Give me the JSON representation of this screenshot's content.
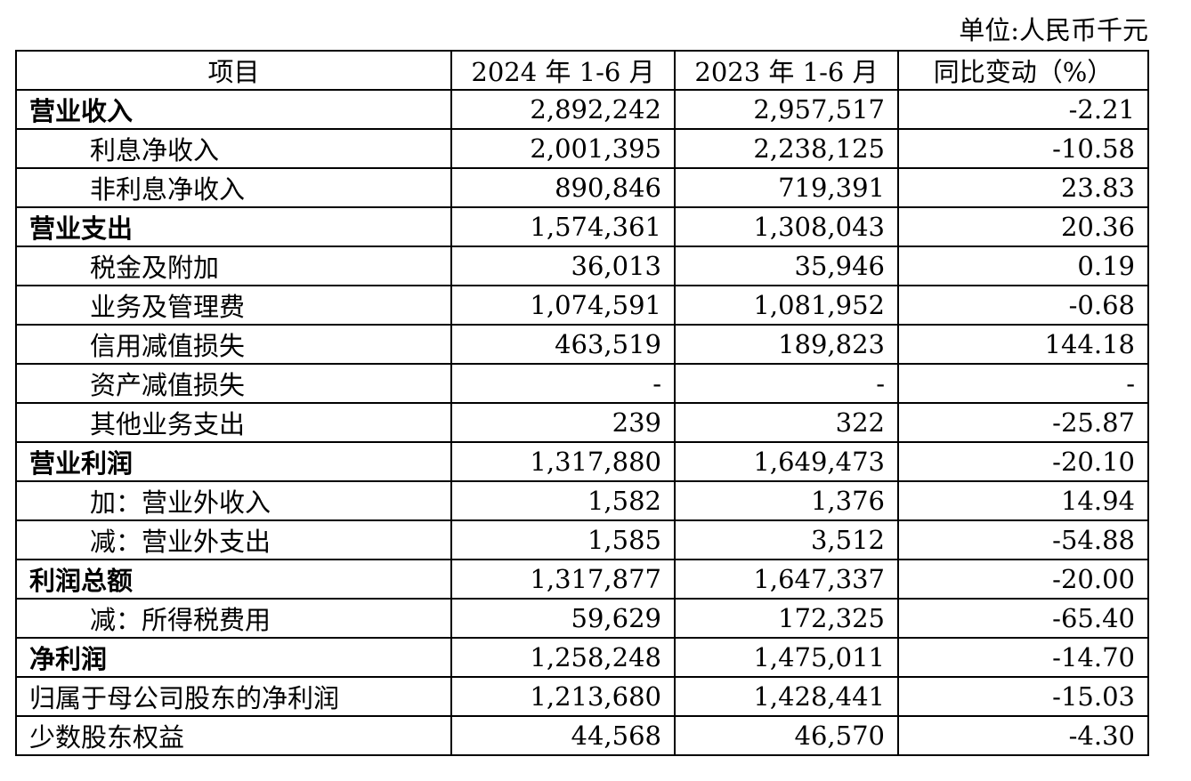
{
  "unit": "单位:人民币千元",
  "headers": [
    "项目",
    "2024 年 1-6 月",
    "2023 年 1-6 月",
    "同比变动（%）"
  ],
  "rows": [
    {
      "label": "营业收入",
      "v2024": "2,892,242",
      "v2023": "2,957,517",
      "change": "-2.21",
      "bold": true,
      "indent": false
    },
    {
      "label": "利息净收入",
      "v2024": "2,001,395",
      "v2023": "2,238,125",
      "change": "-10.58",
      "bold": false,
      "indent": true
    },
    {
      "label": "非利息净收入",
      "v2024": "890,846",
      "v2023": "719,391",
      "change": "23.83",
      "bold": false,
      "indent": true
    },
    {
      "label": "营业支出",
      "v2024": "1,574,361",
      "v2023": "1,308,043",
      "change": "20.36",
      "bold": true,
      "indent": false
    },
    {
      "label": "税金及附加",
      "v2024": "36,013",
      "v2023": "35,946",
      "change": "0.19",
      "bold": false,
      "indent": true
    },
    {
      "label": "业务及管理费",
      "v2024": "1,074,591",
      "v2023": "1,081,952",
      "change": "-0.68",
      "bold": false,
      "indent": true
    },
    {
      "label": "信用减值损失",
      "v2024": "463,519",
      "v2023": "189,823",
      "change": "144.18",
      "bold": false,
      "indent": true
    },
    {
      "label": "资产减值损失",
      "v2024": "-",
      "v2023": "-",
      "change": "-",
      "bold": false,
      "indent": true
    },
    {
      "label": "其他业务支出",
      "v2024": "239",
      "v2023": "322",
      "change": "-25.87",
      "bold": false,
      "indent": true
    },
    {
      "label": "营业利润",
      "v2024": "1,317,880",
      "v2023": "1,649,473",
      "change": "-20.10",
      "bold": true,
      "indent": false
    },
    {
      "label": "加：营业外收入",
      "v2024": "1,582",
      "v2023": "1,376",
      "change": "14.94",
      "bold": false,
      "indent": true
    },
    {
      "label": "减：营业外支出",
      "v2024": "1,585",
      "v2023": "3,512",
      "change": "-54.88",
      "bold": false,
      "indent": true
    },
    {
      "label": "利润总额",
      "v2024": "1,317,877",
      "v2023": "1,647,337",
      "change": "-20.00",
      "bold": true,
      "indent": false
    },
    {
      "label": "减：所得税费用",
      "v2024": "59,629",
      "v2023": "172,325",
      "change": "-65.40",
      "bold": false,
      "indent": true
    },
    {
      "label": "净利润",
      "v2024": "1,258,248",
      "v2023": "1,475,011",
      "change": "-14.70",
      "bold": true,
      "indent": false
    },
    {
      "label": "归属于母公司股东的净利润",
      "v2024": "1,213,680",
      "v2023": "1,428,441",
      "change": "-15.03",
      "bold": false,
      "indent": false
    },
    {
      "label": "少数股东权益",
      "v2024": "44,568",
      "v2023": "46,570",
      "change": "-4.30",
      "bold": false,
      "indent": false
    }
  ]
}
